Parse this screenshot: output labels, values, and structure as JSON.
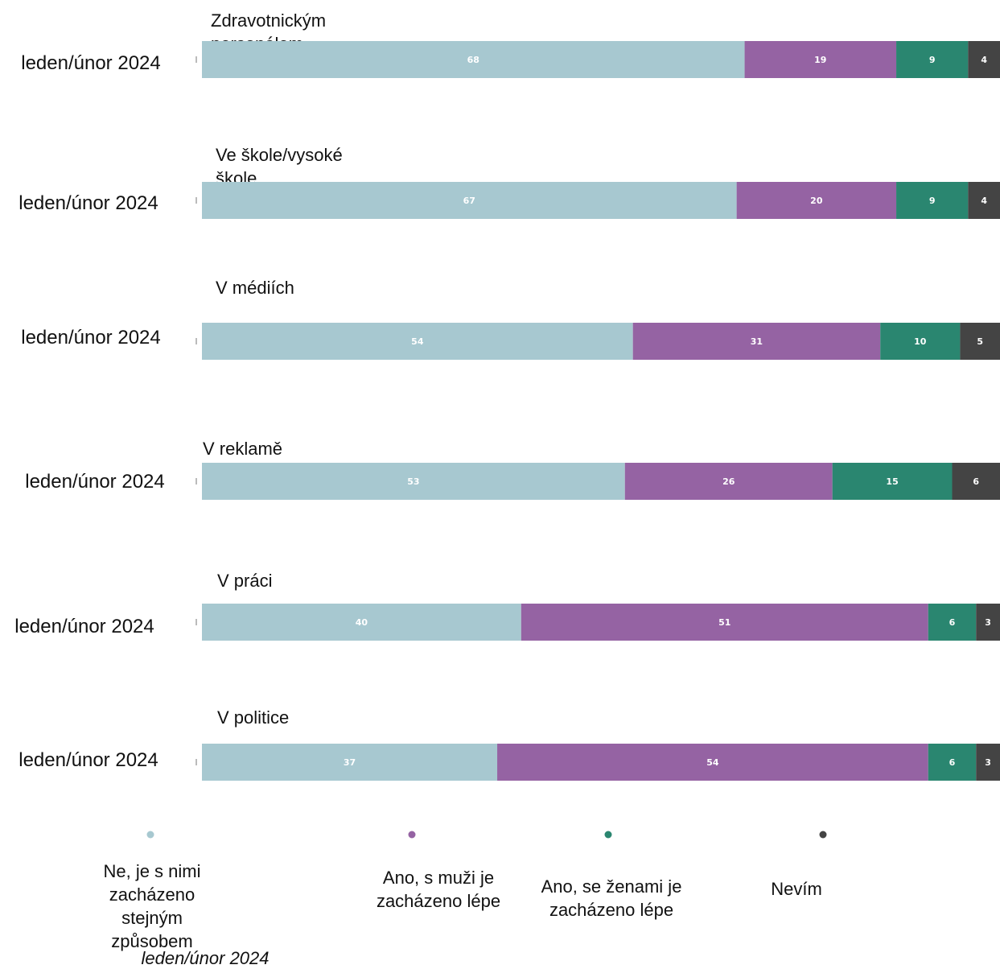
{
  "chart_data": {
    "type": "bar",
    "orientation": "horizontal",
    "stacked": true,
    "xlim": [
      0,
      100
    ],
    "grid": false,
    "legend_placement": "bottom",
    "colors": [
      "#a7c8d0",
      "#9563a3",
      "#2a8670",
      "#444444"
    ],
    "groups": [
      {
        "title": "Zdravotnickým personálem",
        "category": "leden/únor 2024",
        "values": [
          68,
          19,
          9,
          4
        ]
      },
      {
        "title": "Ve škole/vysoké škole",
        "category": "leden/únor 2024",
        "values": [
          67,
          20,
          9,
          4
        ]
      },
      {
        "title": "V médiích",
        "category": "leden/únor 2024",
        "values": [
          54,
          31,
          10,
          5
        ]
      },
      {
        "title": "V reklamě",
        "category": "leden/únor 2024",
        "values": [
          53,
          26,
          15,
          6
        ]
      },
      {
        "title": "V práci",
        "category": "leden/únor 2024",
        "values": [
          40,
          51,
          6,
          3
        ]
      },
      {
        "title": "V politice",
        "category": "leden/únor 2024",
        "values": [
          37,
          54,
          6,
          3
        ]
      }
    ],
    "legend": [
      "Ne, je s nimi zacházeno stejným způsobem",
      "Ano, s muži je zacházeno lépe",
      "Ano, se ženami je zacházeno lépe",
      "Nevím"
    ]
  },
  "footer_note": "leden/únor 2024"
}
